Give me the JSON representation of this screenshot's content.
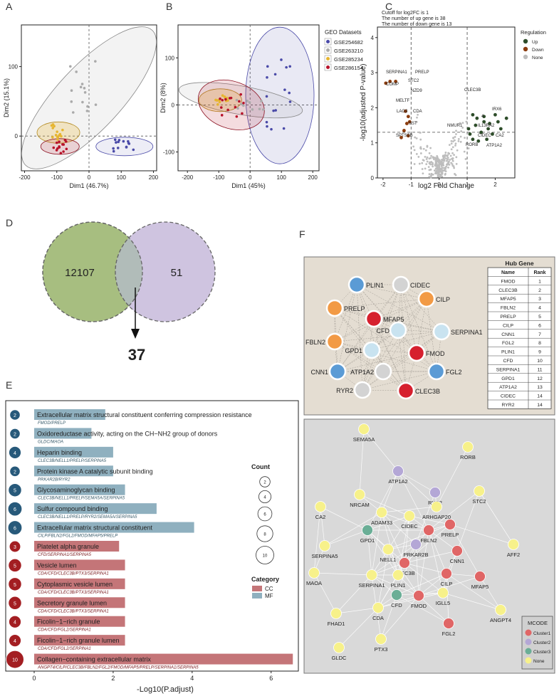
{
  "panel_labels": [
    "A",
    "B",
    "C",
    "D",
    "E",
    "F"
  ],
  "colors": {
    "geo1": "#4a4aa8",
    "geo2": "#aaaaaa",
    "geo3": "#e6b530",
    "geo4": "#b8122a",
    "up": "#2e4d2a",
    "down": "#8b3c0e",
    "none": "#bdbdbd",
    "cc": "#c47578",
    "mf": "#8fb0bf",
    "bubble_cc": "#a31e22",
    "bubble_mf": "#27597a",
    "venn_left": "#a7be80",
    "venn_right": "#cfc4e0",
    "venn_overlap": "#b1bcb9",
    "ppi_bg": "#e4ddd2",
    "mcode_bg": "#d9d9d9",
    "rank1": "#d6202e",
    "rank2": "#f29a45",
    "rank3": "#5b9bd5",
    "rank4": "#c9e3f0",
    "rank5": "#d3d3d3"
  },
  "chart_data": [
    {
      "id": "A",
      "type": "scatter",
      "xlabel": "Dim1 (46.7%)",
      "ylabel": "Dim2 (15.1%)",
      "xticks": [
        -200,
        -100,
        0,
        100,
        200
      ],
      "yticks": [
        0,
        100
      ],
      "xlim": [
        -210,
        210
      ],
      "ylim": [
        -50,
        160
      ]
    },
    {
      "id": "B",
      "type": "scatter",
      "xlabel": "Dim1 (45%)",
      "ylabel": "Dim2 (8%)",
      "xticks": [
        -200,
        -100,
        0,
        100,
        200
      ],
      "yticks": [
        -100,
        0,
        100
      ],
      "xlim": [
        -230,
        220
      ],
      "ylim": [
        -140,
        170
      ],
      "legend_title": "GEO Datasets",
      "series": [
        {
          "name": "GSE254682"
        },
        {
          "name": "GSE263210"
        },
        {
          "name": "GSE285234"
        },
        {
          "name": "GSE286154"
        }
      ]
    },
    {
      "id": "C",
      "type": "scatter",
      "notes": [
        "Cutoff for log2FC is 1",
        "The number of up gene is 38",
        "The number of down gene is 13"
      ],
      "xlabel": "log2 Fold Change",
      "ylabel": "-log10(adjusted P-value)",
      "xticks": [
        -2,
        -1,
        0,
        1,
        2
      ],
      "yticks": [
        0,
        1,
        2,
        3,
        4
      ],
      "xlim": [
        -2.2,
        2.7
      ],
      "ylim": [
        0,
        4.3
      ],
      "legend_title": "Regulation",
      "legend": [
        "Up",
        "Down",
        "None"
      ],
      "up_genes": [
        "CLEC3B",
        "IRX6",
        "NMUR1",
        "IL13RA2",
        "CIDEC",
        "CA2",
        "RORB",
        "ATP1A2",
        "4"
      ],
      "down_genes": [
        "SERPINA1",
        "PRELP",
        "STC2",
        "COMP",
        "NZD9",
        "MELTF",
        "LAG3",
        "CDA",
        "SST",
        "SPTSSB"
      ]
    },
    {
      "id": "D",
      "type": "venn",
      "left_count": "12107",
      "right_count": "51",
      "overlap_count": "37"
    },
    {
      "id": "E",
      "type": "bar",
      "xlabel": "-Log10(P.adjust)",
      "xticks": [
        0,
        2,
        4,
        6
      ],
      "xlim": [
        0,
        6.6
      ],
      "count_legend_title": "Count",
      "count_legend": [
        "2",
        "4",
        "6",
        "8",
        "10"
      ],
      "category_title": "Category",
      "categories": [
        "CC",
        "MF"
      ],
      "terms": [
        {
          "term": "Extracellular matrix structural constituent conferring compression resistance",
          "genes": "FMOD/PRELP",
          "value": 1.8,
          "count": "2",
          "category": "MF"
        },
        {
          "term": "Oxidoreductase activity, acting on the CH−NH2 group of donors",
          "genes": "GLDC/MAOA",
          "value": 1.45,
          "count": "2",
          "category": "MF"
        },
        {
          "term": "Heparin binding",
          "genes": "CLEC3B/NELL1/PRELP/SERPINA5",
          "value": 2.0,
          "count": "4",
          "category": "MF"
        },
        {
          "term": "Protein kinase A catalytic subunit binding",
          "genes": "PRKAR2B/RYR2",
          "value": 2.0,
          "count": "2",
          "category": "MF"
        },
        {
          "term": "Glycosaminoglycan binding",
          "genes": "CLEC3B/NELL1/PRELP/SEMA5A/SERPINA5",
          "value": 2.3,
          "count": "5",
          "category": "MF"
        },
        {
          "term": "Sulfur compound binding",
          "genes": "CLEC3B/NELL1/PRELP/RYR2/SEMA5A/SERPINA5",
          "value": 3.1,
          "count": "6",
          "category": "MF"
        },
        {
          "term": "Extracellular matrix structural constituent",
          "genes": "CILP/FBLN2/FGL2/FMOD/MFAP5/PRELP",
          "value": 4.05,
          "count": "6",
          "category": "MF"
        },
        {
          "term": "Platelet alpha granule",
          "genes": "CFD/SERPINA1/SERPINA5",
          "value": 2.15,
          "count": "3",
          "category": "CC"
        },
        {
          "term": "Vesicle lumen",
          "genes": "CDA/CFD/CLEC3B/PTX3/SERPINA1",
          "value": 2.3,
          "count": "5",
          "category": "CC"
        },
        {
          "term": "Cytoplasmic vesicle lumen",
          "genes": "CDA/CFD/CLEC3B/PTX3/SERPINA1",
          "value": 2.3,
          "count": "5",
          "category": "CC"
        },
        {
          "term": "Secretory granule lumen",
          "genes": "CDA/CFD/CLEC3B/PTX3/SERPINA1",
          "value": 2.3,
          "count": "5",
          "category": "CC"
        },
        {
          "term": "Ficolin−1−rich granule",
          "genes": "CDA/CFD/FGL2/SERPINA1",
          "value": 2.3,
          "count": "4",
          "category": "CC"
        },
        {
          "term": "Ficolin−1−rich granule lumen",
          "genes": "CDA/CFD/FGL2/SERPINA1",
          "value": 2.3,
          "count": "4",
          "category": "CC"
        },
        {
          "term": "Collagen−containing extracellular matrix",
          "genes": "ANGPT4/CILP/CLEC3B/FBLN2/FGL2/FMOD/MFAP5/PRELP/SERPINA1/SERPINA5",
          "value": 6.55,
          "count": "10",
          "category": "CC"
        }
      ]
    }
  ],
  "hub": {
    "title": "Hub Gene",
    "col_name": "Name",
    "col_rank": "Rank",
    "rows": [
      [
        "FMOD",
        "1"
      ],
      [
        "CLEC3B",
        "2"
      ],
      [
        "MFAP5",
        "3"
      ],
      [
        "FBLN2",
        "4"
      ],
      [
        "PRELP",
        "5"
      ],
      [
        "CILP",
        "6"
      ],
      [
        "CNN1",
        "7"
      ],
      [
        "FGL2",
        "8"
      ],
      [
        "PLIN1",
        "9"
      ],
      [
        "CFD",
        "10"
      ],
      [
        "SERPINA1",
        "11"
      ],
      [
        "GPD1",
        "12"
      ],
      [
        "ATP1A2",
        "13"
      ],
      [
        "CIDEC",
        "14"
      ],
      [
        "RYR2",
        "14"
      ]
    ],
    "nodes": [
      {
        "label": "PLIN1",
        "color": "rank3"
      },
      {
        "label": "CIDEC",
        "color": "rank5"
      },
      {
        "label": "CILP",
        "color": "rank2"
      },
      {
        "label": "PRELP",
        "color": "rank2"
      },
      {
        "label": "MFAP5",
        "color": "rank1"
      },
      {
        "label": "CFD",
        "color": "rank4"
      },
      {
        "label": "SERPINA1",
        "color": "rank4"
      },
      {
        "label": "FBLN2",
        "color": "rank2"
      },
      {
        "label": "GPD1",
        "color": "rank4"
      },
      {
        "label": "FMOD",
        "color": "rank1"
      },
      {
        "label": "CNN1",
        "color": "rank3"
      },
      {
        "label": "ATP1A2",
        "color": "rank5"
      },
      {
        "label": "FGL2",
        "color": "rank3"
      },
      {
        "label": "RYR2",
        "color": "rank5"
      },
      {
        "label": "CLEC3B",
        "color": "rank1"
      }
    ]
  },
  "mcode": {
    "legend_title": "MCODE",
    "legend": [
      {
        "label": "Cluster1",
        "color": "#e06666"
      },
      {
        "label": "Cluster2",
        "color": "#b4a7d6"
      },
      {
        "label": "Cluster3",
        "color": "#6aae96"
      },
      {
        "label": "None",
        "color": "#f7f18a"
      }
    ],
    "nodes": [
      {
        "label": "SEMA5A",
        "c": 3
      },
      {
        "label": "RORB",
        "c": 3
      },
      {
        "label": "ATP1A2",
        "c": 1
      },
      {
        "label": "STC2",
        "c": 3
      },
      {
        "label": "RYR2",
        "c": 1
      },
      {
        "label": "NRCAM",
        "c": 3
      },
      {
        "label": "ARHGAP20",
        "c": 3
      },
      {
        "label": "CA2",
        "c": 3
      },
      {
        "label": "ADAM33",
        "c": 3
      },
      {
        "label": "CIDEC",
        "c": 3
      },
      {
        "label": "PRELP",
        "c": 0
      },
      {
        "label": "GPD1",
        "c": 2
      },
      {
        "label": "FBLN2",
        "c": 0
      },
      {
        "label": "PRKAR2B",
        "c": 1
      },
      {
        "label": "AFF2",
        "c": 3
      },
      {
        "label": "SERPINA5",
        "c": 3
      },
      {
        "label": "NELL1",
        "c": 3
      },
      {
        "label": "CNN1",
        "c": 0
      },
      {
        "label": "CLEC3B",
        "c": 0
      },
      {
        "label": "MAOA",
        "c": 3
      },
      {
        "label": "SERPINA1",
        "c": 3
      },
      {
        "label": "PLIN1",
        "c": 3
      },
      {
        "label": "CILP",
        "c": 0
      },
      {
        "label": "MFAP5",
        "c": 0
      },
      {
        "label": "CFD",
        "c": 2
      },
      {
        "label": "FMOD",
        "c": 0
      },
      {
        "label": "IGLL5",
        "c": 3
      },
      {
        "label": "FHAD1",
        "c": 3
      },
      {
        "label": "CDA",
        "c": 3
      },
      {
        "label": "FGL2",
        "c": 0
      },
      {
        "label": "ANGPT4",
        "c": 3
      },
      {
        "label": "PTX3",
        "c": 3
      },
      {
        "label": "GLDC",
        "c": 3
      }
    ]
  }
}
